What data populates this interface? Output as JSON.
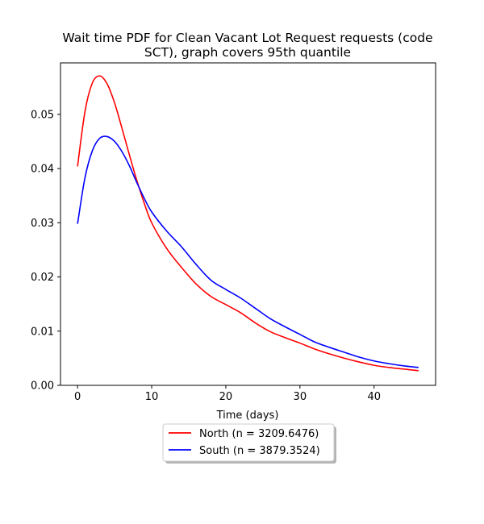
{
  "chart_data": {
    "type": "line",
    "title_line1": "Wait time PDF for Clean Vacant Lot Request  requests (code",
    "title_line2": "SCT), graph covers 95th quantile",
    "xlabel": "Time (days)",
    "ylabel": "",
    "xlim": [
      -2.3,
      48.3
    ],
    "ylim": [
      0.0,
      0.0595
    ],
    "xticks": [
      0,
      10,
      20,
      30,
      40
    ],
    "yticks": [
      0.0,
      0.01,
      0.02,
      0.03,
      0.04,
      0.05
    ],
    "ytick_labels": [
      "0.00",
      "0.01",
      "0.02",
      "0.03",
      "0.04",
      "0.05"
    ],
    "grid": false,
    "legend_position": "below",
    "series": [
      {
        "name": "North (n = 3209.6476)",
        "color": "#ff0000",
        "x": [
          0,
          1,
          2,
          3,
          4,
          5,
          6,
          7,
          8,
          9,
          10,
          12,
          14,
          16,
          18,
          20,
          22,
          24,
          26,
          28,
          30,
          32,
          34,
          36,
          38,
          40,
          42,
          44,
          46
        ],
        "y": [
          0.0404,
          0.0505,
          0.0558,
          0.0571,
          0.0556,
          0.0521,
          0.0474,
          0.0425,
          0.0378,
          0.0336,
          0.03,
          0.0253,
          0.0218,
          0.0187,
          0.0164,
          0.0149,
          0.0134,
          0.0115,
          0.0099,
          0.0088,
          0.0078,
          0.0067,
          0.0058,
          0.005,
          0.0043,
          0.0037,
          0.0033,
          0.003,
          0.0027
        ]
      },
      {
        "name": "South (n = 3879.3524)",
        "color": "#0000ff",
        "x": [
          0,
          1,
          2,
          3,
          4,
          5,
          6,
          7,
          8,
          9,
          10,
          12,
          14,
          16,
          18,
          20,
          22,
          24,
          26,
          28,
          30,
          32,
          34,
          36,
          38,
          40,
          42,
          44,
          46
        ],
        "y": [
          0.0298,
          0.0383,
          0.0433,
          0.0456,
          0.0459,
          0.045,
          0.0431,
          0.0405,
          0.0374,
          0.0345,
          0.032,
          0.0285,
          0.0256,
          0.0223,
          0.0194,
          0.0177,
          0.0161,
          0.0142,
          0.0123,
          0.0108,
          0.0094,
          0.008,
          0.007,
          0.0061,
          0.0052,
          0.0045,
          0.004,
          0.0036,
          0.0033
        ]
      }
    ]
  }
}
